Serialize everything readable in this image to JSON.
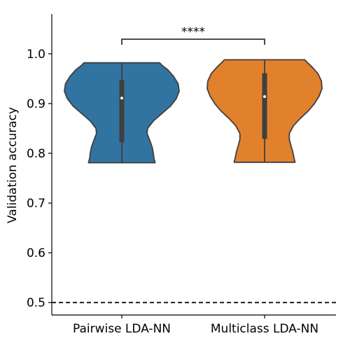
{
  "chart_data": {
    "type": "violin",
    "title": "",
    "xlabel": "",
    "ylabel": "Validation accuracy",
    "ylim": [
      0.475,
      1.08
    ],
    "yticks": [
      0.5,
      0.6,
      0.7,
      0.8,
      0.9,
      1.0
    ],
    "ytick_labels": [
      "0.5",
      "0.6",
      "0.7",
      "0.8",
      "0.9",
      "1.0"
    ],
    "grid": false,
    "legend": "none",
    "categories": [
      "Pairwise LDA-NN",
      "Multiclass LDA-NN"
    ],
    "series": [
      {
        "category": "Pairwise LDA-NN",
        "color": "#3274a1",
        "min": 0.781,
        "q1": 0.822,
        "median": 0.911,
        "q3": 0.947,
        "max": 0.982,
        "density_profile": [
          {
            "y": 0.781,
            "w": 0.58
          },
          {
            "y": 0.79,
            "w": 0.56
          },
          {
            "y": 0.8,
            "w": 0.55
          },
          {
            "y": 0.812,
            "w": 0.53
          },
          {
            "y": 0.825,
            "w": 0.49
          },
          {
            "y": 0.84,
            "w": 0.44
          },
          {
            "y": 0.85,
            "w": 0.45
          },
          {
            "y": 0.865,
            "w": 0.55
          },
          {
            "y": 0.88,
            "w": 0.7
          },
          {
            "y": 0.895,
            "w": 0.85
          },
          {
            "y": 0.91,
            "w": 0.95
          },
          {
            "y": 0.925,
            "w": 1.0
          },
          {
            "y": 0.94,
            "w": 0.98
          },
          {
            "y": 0.955,
            "w": 0.9
          },
          {
            "y": 0.968,
            "w": 0.8
          },
          {
            "y": 0.977,
            "w": 0.7
          },
          {
            "y": 0.982,
            "w": 0.66
          }
        ]
      },
      {
        "category": "Multiclass LDA-NN",
        "color": "#e1812c",
        "min": 0.782,
        "q1": 0.829,
        "median": 0.914,
        "q3": 0.961,
        "max": 0.988,
        "density_profile": [
          {
            "y": 0.782,
            "w": 0.53
          },
          {
            "y": 0.792,
            "w": 0.51
          },
          {
            "y": 0.803,
            "w": 0.49
          },
          {
            "y": 0.815,
            "w": 0.46
          },
          {
            "y": 0.828,
            "w": 0.43
          },
          {
            "y": 0.84,
            "w": 0.43
          },
          {
            "y": 0.855,
            "w": 0.5
          },
          {
            "y": 0.87,
            "w": 0.62
          },
          {
            "y": 0.885,
            "w": 0.76
          },
          {
            "y": 0.9,
            "w": 0.87
          },
          {
            "y": 0.915,
            "w": 0.95
          },
          {
            "y": 0.93,
            "w": 1.0
          },
          {
            "y": 0.945,
            "w": 0.99
          },
          {
            "y": 0.96,
            "w": 0.93
          },
          {
            "y": 0.972,
            "w": 0.84
          },
          {
            "y": 0.982,
            "w": 0.75
          },
          {
            "y": 0.988,
            "w": 0.7
          }
        ]
      }
    ],
    "reference_line": {
      "y": 0.5,
      "style": "dashed",
      "color": "#000000"
    },
    "significance": {
      "text": "****",
      "between": [
        "Pairwise LDA-NN",
        "Multiclass LDA-NN"
      ]
    }
  }
}
